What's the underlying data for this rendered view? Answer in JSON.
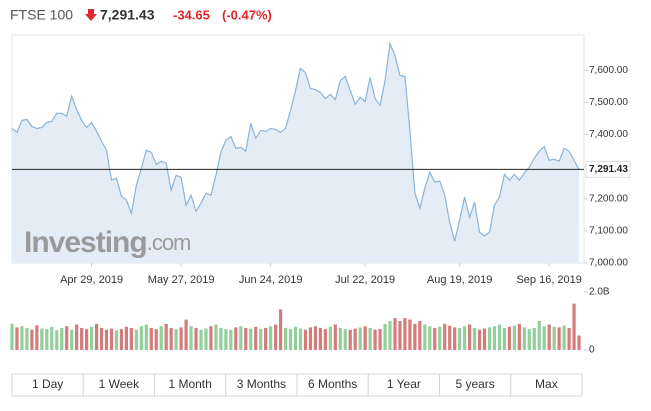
{
  "chart_data": {
    "type": "area",
    "name": "FTSE 100",
    "last": {
      "value": 7291.43,
      "label": "7,291.43"
    },
    "change": -34.65,
    "change_pct": {
      "value": -0.47,
      "label": "(-0.47%)"
    },
    "brand": "Investing",
    "brand_suffix": ".com",
    "color": "#8ab4d8",
    "fill": "#e4edf5",
    "up_color": "#93cf9c",
    "down_color": "#d27c7c",
    "values": [
      7419,
      7407,
      7444,
      7447,
      7425,
      7419,
      7422,
      7438,
      7441,
      7466,
      7466,
      7457,
      7519,
      7478,
      7444,
      7422,
      7438,
      7410,
      7379,
      7351,
      7258,
      7264,
      7208,
      7196,
      7155,
      7242,
      7295,
      7351,
      7345,
      7307,
      7317,
      7311,
      7227,
      7273,
      7267,
      7180,
      7211,
      7161,
      7186,
      7217,
      7211,
      7273,
      7345,
      7382,
      7394,
      7357,
      7360,
      7348,
      7435,
      7388,
      7413,
      7410,
      7419,
      7416,
      7407,
      7419,
      7475,
      7537,
      7606,
      7593,
      7543,
      7540,
      7531,
      7512,
      7525,
      7509,
      7568,
      7581,
      7537,
      7494,
      7516,
      7503,
      7578,
      7512,
      7491,
      7568,
      7683,
      7646,
      7584,
      7581,
      7413,
      7217,
      7171,
      7233,
      7283,
      7252,
      7255,
      7211,
      7127,
      7068,
      7134,
      7205,
      7143,
      7189,
      7096,
      7084,
      7096,
      7180,
      7205,
      7276,
      7258,
      7276,
      7258,
      7280,
      7298,
      7326,
      7348,
      7363,
      7320,
      7323,
      7317,
      7357,
      7348,
      7320,
      7291.43
    ],
    "volume": [
      900000000,
      780000000,
      820000000,
      760000000,
      700000000,
      850000000,
      740000000,
      720000000,
      800000000,
      680000000,
      760000000,
      820000000,
      700000000,
      880000000,
      760000000,
      720000000,
      800000000,
      900000000,
      760000000,
      700000000,
      740000000,
      680000000,
      720000000,
      800000000,
      760000000,
      700000000,
      820000000,
      880000000,
      760000000,
      720000000,
      820000000,
      900000000,
      760000000,
      720000000,
      780000000,
      1050000000,
      820000000,
      760000000,
      700000000,
      740000000,
      820000000,
      880000000,
      760000000,
      720000000,
      700000000,
      780000000,
      820000000,
      760000000,
      740000000,
      800000000,
      720000000,
      760000000,
      820000000,
      880000000,
      1400000000,
      760000000,
      720000000,
      800000000,
      740000000,
      700000000,
      780000000,
      820000000,
      760000000,
      720000000,
      800000000,
      880000000,
      760000000,
      720000000,
      700000000,
      740000000,
      780000000,
      820000000,
      760000000,
      700000000,
      720000000,
      900000000,
      1000000000,
      1100000000,
      1000000000,
      1100000000,
      1050000000,
      900000000,
      1000000000,
      880000000,
      820000000,
      760000000,
      800000000,
      900000000,
      840000000,
      780000000,
      760000000,
      820000000,
      880000000,
      760000000,
      700000000,
      740000000,
      780000000,
      820000000,
      880000000,
      760000000,
      800000000,
      840000000,
      900000000,
      780000000,
      720000000,
      760000000,
      1000000000,
      820000000,
      880000000,
      800000000,
      780000000,
      840000000,
      760000000,
      1600000000,
      500000000
    ],
    "xlim": [
      0,
      115
    ],
    "xticks": [
      {
        "value": 16,
        "label": "Apr 29, 2019"
      },
      {
        "value": 34,
        "label": "May 27, 2019"
      },
      {
        "value": 52,
        "label": "Jun 24, 2019"
      },
      {
        "value": 71,
        "label": "Jul 22, 2019"
      },
      {
        "value": 90,
        "label": "Aug 19, 2019"
      },
      {
        "value": 108,
        "label": "Sep 16, 2019"
      }
    ],
    "ylim": [
      7000,
      7710
    ],
    "yticks": [
      {
        "value": 7000,
        "label": "7,000.00"
      },
      {
        "value": 7100,
        "label": "7,100.00"
      },
      {
        "value": 7200,
        "label": "7,200.00"
      },
      {
        "value": 7300,
        "label": "7,300.00"
      },
      {
        "value": 7400,
        "label": "7,400.00"
      },
      {
        "value": 7500,
        "label": "7,500.00"
      },
      {
        "value": 7600,
        "label": "7,600.00"
      }
    ],
    "vol_ylim": [
      0,
      2000000000
    ],
    "vol_yticks": [
      0,
      {
        "value": 2000000000,
        "label": "2.0B"
      }
    ],
    "ranges": [
      "1 Day",
      "1 Week",
      "1 Month",
      "3 Months",
      "6 Months",
      "1 Year",
      "5 years",
      "Max"
    ]
  }
}
